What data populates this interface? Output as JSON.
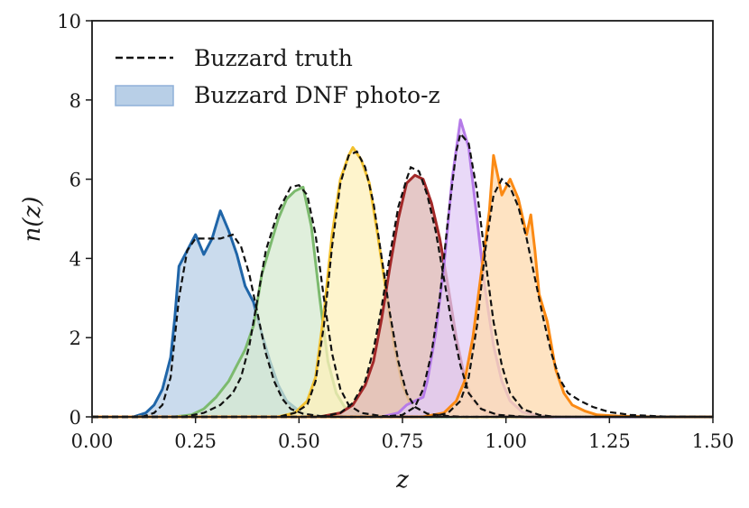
{
  "chart_data": {
    "type": "area",
    "title": "",
    "xlabel": "z",
    "ylabel": "n(z)",
    "xlim": [
      0.0,
      1.5
    ],
    "ylim": [
      0,
      10
    ],
    "x_ticks": [
      "0.00",
      "0.25",
      "0.50",
      "0.75",
      "1.00",
      "1.25",
      "1.50"
    ],
    "y_ticks": [
      "0",
      "2",
      "4",
      "6",
      "8",
      "10"
    ],
    "grid": false,
    "legend": {
      "placement": "top-left",
      "entries": [
        {
          "label": "Buzzard truth",
          "style": "dashed-line",
          "color": "#111111"
        },
        {
          "label": "Buzzard DNF photo-z",
          "style": "filled",
          "color": "#aac4e1"
        }
      ]
    },
    "series": [
      {
        "color": "#1f65a8",
        "fill": "#b8cfe7",
        "photoz": [
          [
            0.0,
            0
          ],
          [
            0.1,
            0
          ],
          [
            0.13,
            0.1
          ],
          [
            0.15,
            0.3
          ],
          [
            0.17,
            0.7
          ],
          [
            0.19,
            1.5
          ],
          [
            0.2,
            2.5
          ],
          [
            0.21,
            3.8
          ],
          [
            0.23,
            4.2
          ],
          [
            0.25,
            4.6
          ],
          [
            0.27,
            4.1
          ],
          [
            0.29,
            4.5
          ],
          [
            0.31,
            5.2
          ],
          [
            0.33,
            4.7
          ],
          [
            0.35,
            4.1
          ],
          [
            0.37,
            3.3
          ],
          [
            0.39,
            2.9
          ],
          [
            0.41,
            2.1
          ],
          [
            0.43,
            1.4
          ],
          [
            0.45,
            0.8
          ],
          [
            0.47,
            0.4
          ],
          [
            0.5,
            0.15
          ],
          [
            0.53,
            0.05
          ],
          [
            0.6,
            0
          ],
          [
            1.5,
            0
          ]
        ],
        "truth": [
          [
            0.0,
            0
          ],
          [
            0.12,
            0
          ],
          [
            0.15,
            0.1
          ],
          [
            0.17,
            0.3
          ],
          [
            0.19,
            1.0
          ],
          [
            0.21,
            3.0
          ],
          [
            0.23,
            4.2
          ],
          [
            0.25,
            4.5
          ],
          [
            0.28,
            4.5
          ],
          [
            0.31,
            4.5
          ],
          [
            0.34,
            4.6
          ],
          [
            0.36,
            4.3
          ],
          [
            0.38,
            3.6
          ],
          [
            0.4,
            2.6
          ],
          [
            0.42,
            1.6
          ],
          [
            0.44,
            0.9
          ],
          [
            0.46,
            0.45
          ],
          [
            0.48,
            0.2
          ],
          [
            0.51,
            0.08
          ],
          [
            0.55,
            0.02
          ],
          [
            0.6,
            0
          ],
          [
            1.5,
            0
          ]
        ]
      },
      {
        "color": "#7cba6e",
        "fill": "#d5ead0",
        "photoz": [
          [
            0.0,
            0
          ],
          [
            0.2,
            0
          ],
          [
            0.24,
            0.05
          ],
          [
            0.27,
            0.2
          ],
          [
            0.3,
            0.5
          ],
          [
            0.33,
            0.9
          ],
          [
            0.35,
            1.3
          ],
          [
            0.37,
            1.7
          ],
          [
            0.39,
            2.3
          ],
          [
            0.41,
            3.6
          ],
          [
            0.43,
            4.3
          ],
          [
            0.45,
            5.0
          ],
          [
            0.47,
            5.5
          ],
          [
            0.49,
            5.7
          ],
          [
            0.51,
            5.8
          ],
          [
            0.53,
            4.8
          ],
          [
            0.55,
            3.0
          ],
          [
            0.57,
            1.4
          ],
          [
            0.59,
            0.6
          ],
          [
            0.61,
            0.25
          ],
          [
            0.64,
            0.08
          ],
          [
            0.68,
            0.02
          ],
          [
            0.72,
            0
          ],
          [
            1.5,
            0
          ]
        ],
        "truth": [
          [
            0.0,
            0
          ],
          [
            0.22,
            0
          ],
          [
            0.27,
            0.1
          ],
          [
            0.31,
            0.3
          ],
          [
            0.34,
            0.6
          ],
          [
            0.36,
            1.0
          ],
          [
            0.38,
            1.8
          ],
          [
            0.4,
            3.0
          ],
          [
            0.42,
            4.2
          ],
          [
            0.45,
            5.2
          ],
          [
            0.48,
            5.8
          ],
          [
            0.5,
            5.85
          ],
          [
            0.52,
            5.6
          ],
          [
            0.54,
            4.6
          ],
          [
            0.56,
            3.0
          ],
          [
            0.58,
            1.6
          ],
          [
            0.6,
            0.7
          ],
          [
            0.62,
            0.3
          ],
          [
            0.65,
            0.1
          ],
          [
            0.7,
            0.02
          ],
          [
            0.75,
            0
          ],
          [
            1.5,
            0
          ]
        ]
      },
      {
        "color": "#f2c12e",
        "fill": "#fdf0bb",
        "photoz": [
          [
            0.0,
            0
          ],
          [
            0.45,
            0
          ],
          [
            0.49,
            0.1
          ],
          [
            0.52,
            0.4
          ],
          [
            0.54,
            1.0
          ],
          [
            0.56,
            2.6
          ],
          [
            0.58,
            4.6
          ],
          [
            0.6,
            6.0
          ],
          [
            0.62,
            6.6
          ],
          [
            0.63,
            6.8
          ],
          [
            0.65,
            6.5
          ],
          [
            0.67,
            5.9
          ],
          [
            0.69,
            4.6
          ],
          [
            0.71,
            3.2
          ],
          [
            0.73,
            1.8
          ],
          [
            0.75,
            0.8
          ],
          [
            0.77,
            0.3
          ],
          [
            0.8,
            0.1
          ],
          [
            0.85,
            0.02
          ],
          [
            0.9,
            0
          ],
          [
            1.5,
            0
          ]
        ],
        "truth": [
          [
            0.0,
            0
          ],
          [
            0.45,
            0
          ],
          [
            0.49,
            0.1
          ],
          [
            0.52,
            0.3
          ],
          [
            0.54,
            0.9
          ],
          [
            0.56,
            2.3
          ],
          [
            0.58,
            4.3
          ],
          [
            0.6,
            5.9
          ],
          [
            0.62,
            6.6
          ],
          [
            0.64,
            6.7
          ],
          [
            0.66,
            6.3
          ],
          [
            0.68,
            5.4
          ],
          [
            0.7,
            4.0
          ],
          [
            0.72,
            2.6
          ],
          [
            0.74,
            1.4
          ],
          [
            0.76,
            0.6
          ],
          [
            0.78,
            0.25
          ],
          [
            0.81,
            0.08
          ],
          [
            0.86,
            0.02
          ],
          [
            0.9,
            0
          ],
          [
            1.5,
            0
          ]
        ]
      },
      {
        "color": "#a22828",
        "fill": "#dcb6b4",
        "photoz": [
          [
            0.0,
            0
          ],
          [
            0.55,
            0
          ],
          [
            0.6,
            0.1
          ],
          [
            0.63,
            0.3
          ],
          [
            0.66,
            0.8
          ],
          [
            0.68,
            1.4
          ],
          [
            0.7,
            2.5
          ],
          [
            0.72,
            3.8
          ],
          [
            0.74,
            5.0
          ],
          [
            0.76,
            5.9
          ],
          [
            0.78,
            6.1
          ],
          [
            0.8,
            6.0
          ],
          [
            0.82,
            5.4
          ],
          [
            0.84,
            4.5
          ],
          [
            0.86,
            3.3
          ],
          [
            0.88,
            2.0
          ],
          [
            0.9,
            1.0
          ],
          [
            0.92,
            0.4
          ],
          [
            0.95,
            0.12
          ],
          [
            1.0,
            0.02
          ],
          [
            1.05,
            0
          ],
          [
            1.5,
            0
          ]
        ],
        "truth": [
          [
            0.0,
            0
          ],
          [
            0.55,
            0
          ],
          [
            0.6,
            0.1
          ],
          [
            0.63,
            0.35
          ],
          [
            0.66,
            0.9
          ],
          [
            0.68,
            1.7
          ],
          [
            0.7,
            2.8
          ],
          [
            0.72,
            4.1
          ],
          [
            0.74,
            5.3
          ],
          [
            0.76,
            6.0
          ],
          [
            0.77,
            6.3
          ],
          [
            0.79,
            6.2
          ],
          [
            0.81,
            5.6
          ],
          [
            0.83,
            4.7
          ],
          [
            0.85,
            3.5
          ],
          [
            0.87,
            2.3
          ],
          [
            0.89,
            1.3
          ],
          [
            0.91,
            0.6
          ],
          [
            0.94,
            0.2
          ],
          [
            0.98,
            0.05
          ],
          [
            1.05,
            0
          ],
          [
            1.5,
            0
          ]
        ]
      },
      {
        "color": "#b57be8",
        "fill": "#e2ccf6",
        "photoz": [
          [
            0.0,
            0
          ],
          [
            0.7,
            0
          ],
          [
            0.74,
            0.1
          ],
          [
            0.76,
            0.3
          ],
          [
            0.78,
            0.4
          ],
          [
            0.8,
            0.5
          ],
          [
            0.81,
            0.9
          ],
          [
            0.83,
            2.1
          ],
          [
            0.85,
            3.8
          ],
          [
            0.87,
            6.0
          ],
          [
            0.89,
            7.5
          ],
          [
            0.91,
            6.8
          ],
          [
            0.93,
            5.0
          ],
          [
            0.95,
            3.2
          ],
          [
            0.97,
            1.8
          ],
          [
            0.99,
            0.9
          ],
          [
            1.01,
            0.4
          ],
          [
            1.04,
            0.12
          ],
          [
            1.08,
            0.03
          ],
          [
            1.12,
            0
          ],
          [
            1.5,
            0
          ]
        ],
        "truth": [
          [
            0.0,
            0
          ],
          [
            0.7,
            0
          ],
          [
            0.75,
            0.05
          ],
          [
            0.78,
            0.25
          ],
          [
            0.8,
            0.7
          ],
          [
            0.82,
            1.6
          ],
          [
            0.84,
            3.0
          ],
          [
            0.86,
            5.0
          ],
          [
            0.88,
            6.7
          ],
          [
            0.89,
            7.15
          ],
          [
            0.91,
            6.9
          ],
          [
            0.93,
            5.7
          ],
          [
            0.95,
            4.0
          ],
          [
            0.97,
            2.4
          ],
          [
            0.99,
            1.3
          ],
          [
            1.01,
            0.6
          ],
          [
            1.04,
            0.2
          ],
          [
            1.08,
            0.05
          ],
          [
            1.12,
            0
          ],
          [
            1.5,
            0
          ]
        ]
      },
      {
        "color": "#fb8a14",
        "fill": "#fdd9ad",
        "photoz": [
          [
            0.0,
            0
          ],
          [
            0.8,
            0
          ],
          [
            0.85,
            0.1
          ],
          [
            0.88,
            0.4
          ],
          [
            0.9,
            0.9
          ],
          [
            0.92,
            2.0
          ],
          [
            0.94,
            3.6
          ],
          [
            0.96,
            5.2
          ],
          [
            0.97,
            6.6
          ],
          [
            0.99,
            5.6
          ],
          [
            1.01,
            6.0
          ],
          [
            1.03,
            5.5
          ],
          [
            1.05,
            4.6
          ],
          [
            1.06,
            5.1
          ],
          [
            1.07,
            4.2
          ],
          [
            1.08,
            3.1
          ],
          [
            1.1,
            2.4
          ],
          [
            1.12,
            1.2
          ],
          [
            1.14,
            0.6
          ],
          [
            1.16,
            0.3
          ],
          [
            1.19,
            0.15
          ],
          [
            1.22,
            0.05
          ],
          [
            1.27,
            0.02
          ],
          [
            1.35,
            0
          ],
          [
            1.5,
            0
          ]
        ],
        "truth": [
          [
            0.0,
            0
          ],
          [
            0.82,
            0
          ],
          [
            0.86,
            0.1
          ],
          [
            0.89,
            0.4
          ],
          [
            0.91,
            1.0
          ],
          [
            0.93,
            2.3
          ],
          [
            0.95,
            4.2
          ],
          [
            0.97,
            5.6
          ],
          [
            0.99,
            6.0
          ],
          [
            1.01,
            5.8
          ],
          [
            1.03,
            5.3
          ],
          [
            1.05,
            4.5
          ],
          [
            1.07,
            3.5
          ],
          [
            1.09,
            2.5
          ],
          [
            1.11,
            1.6
          ],
          [
            1.13,
            0.95
          ],
          [
            1.15,
            0.6
          ],
          [
            1.18,
            0.4
          ],
          [
            1.21,
            0.25
          ],
          [
            1.25,
            0.12
          ],
          [
            1.3,
            0.05
          ],
          [
            1.38,
            0.01
          ],
          [
            1.5,
            0
          ]
        ]
      }
    ]
  }
}
